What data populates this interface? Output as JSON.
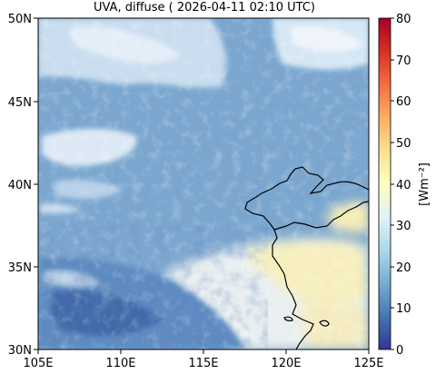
{
  "title": "UVA, diffuse ( 2026-04-11 02:10 UTC)",
  "map": {
    "lon_ticks": [
      "105E",
      "110E",
      "115E",
      "120E",
      "125E"
    ],
    "lat_ticks": [
      "30N",
      "35N",
      "40N",
      "45N",
      "50N"
    ],
    "extent": {
      "lon": [
        105,
        125
      ],
      "lat": [
        30,
        50
      ]
    }
  },
  "colorbar": {
    "label": "[Wm⁻²]",
    "ticks": [
      "0",
      "10",
      "20",
      "30",
      "40",
      "50",
      "60",
      "70",
      "80"
    ],
    "range": [
      0,
      80
    ],
    "colors": [
      "#313695",
      "#4575b4",
      "#74add1",
      "#abd9e9",
      "#e0f3f8",
      "#ffffbf",
      "#fee090",
      "#fdae61",
      "#f46d43",
      "#d73027",
      "#a50026"
    ]
  },
  "colors": {
    "clear_sky": "#7ba7cf",
    "cloud_dense": "#3d6aa8",
    "cloud_bright": "#dbe9f5",
    "high_value": "#fbf0b4",
    "coastline": "#000000"
  }
}
